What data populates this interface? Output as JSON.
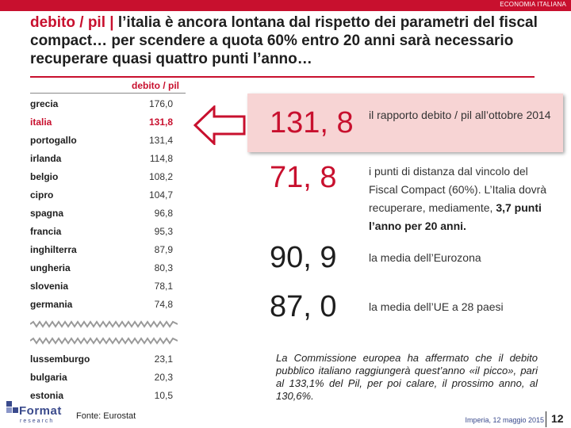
{
  "header": {
    "section": "ECONOMIA ITALIANA",
    "title_first": "debito / pil | ",
    "title_rest": "l’italia è ancora lontana dal rispetto dei parametri del fiscal compact… per scendere a quota 60% entro 20 anni sarà necessario recuperare quasi quattro punti l’anno…"
  },
  "table": {
    "header": "debito / pil",
    "rows_top": [
      {
        "country": "grecia",
        "value": "176,0"
      },
      {
        "country": "italia",
        "value": "131,8"
      },
      {
        "country": "portogallo",
        "value": "131,4"
      },
      {
        "country": "irlanda",
        "value": "114,8"
      },
      {
        "country": "belgio",
        "value": "108,2"
      },
      {
        "country": "cipro",
        "value": "104,7"
      },
      {
        "country": "spagna",
        "value": "96,8"
      },
      {
        "country": "francia",
        "value": "95,3"
      },
      {
        "country": "inghilterra",
        "value": "87,9"
      },
      {
        "country": "ungheria",
        "value": "80,3"
      },
      {
        "country": "slovenia",
        "value": "78,1"
      },
      {
        "country": "germania",
        "value": "74,8"
      }
    ],
    "rows_bottom": [
      {
        "country": "lussemburgo",
        "value": "23,1"
      },
      {
        "country": "bulgaria",
        "value": "20,3"
      },
      {
        "country": "estonia",
        "value": "10,5"
      }
    ]
  },
  "stats": [
    {
      "value": "131, 8",
      "desc": "il rapporto debito / pil all’ottobre 2014",
      "desc_bold": ""
    },
    {
      "value": "71, 8",
      "desc": "i punti di distanza dal vincolo del Fiscal Compact (60%). L’Italia dovrà recuperare, mediamente,",
      "desc_bold": "3,7 punti l’anno per 20 anni."
    },
    {
      "value": "90, 9",
      "desc": "la media dell’Eurozona",
      "desc_bold": ""
    },
    {
      "value": "87, 0",
      "desc": "la media dell’UE a 28 paesi",
      "desc_bold": ""
    }
  ],
  "note": "La Commissione europea ha affermato che il debito pubblico italiano raggiungerà quest’anno «il picco», pari al 133,1% del Pil, per poi calare, il prossimo anno, al 130,6%.",
  "footer": {
    "logo_text": "Format",
    "logo_sub": "research",
    "source": "Fonte: Eurostat",
    "date": "Imperia, 12 maggio 2015",
    "page": "12"
  },
  "colors": {
    "accent": "#c8102e",
    "highlight_bg": "#f7d4d4",
    "brand": "#3a4a8c"
  },
  "icons": [
    "left-arrow-icon",
    "zigzag-break-icon",
    "format-logo-icon"
  ]
}
